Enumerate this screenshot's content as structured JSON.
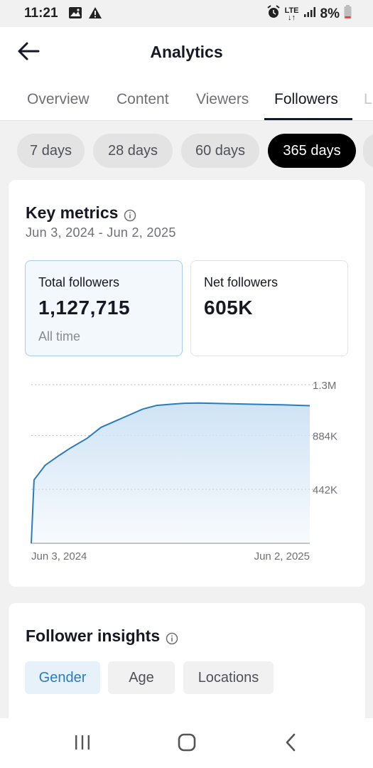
{
  "status_bar": {
    "time": "11:21",
    "network": "LTE",
    "battery": "8%",
    "icons": [
      "image-icon",
      "warning-icon",
      "alarm-icon",
      "lte-icon",
      "signal-icon",
      "battery-icon"
    ]
  },
  "header": {
    "title": "Analytics",
    "back_icon": "back-arrow-icon"
  },
  "tabs": [
    {
      "label": "Overview",
      "active": false
    },
    {
      "label": "Content",
      "active": false
    },
    {
      "label": "Viewers",
      "active": false
    },
    {
      "label": "Followers",
      "active": true
    }
  ],
  "periods": [
    {
      "label": "7 days",
      "active": false
    },
    {
      "label": "28 days",
      "active": false
    },
    {
      "label": "60 days",
      "active": false
    },
    {
      "label": "365 days",
      "active": true
    }
  ],
  "key_metrics": {
    "title": "Key metrics",
    "date_range": "Jun 3, 2024 - Jun 2, 2025",
    "metrics": [
      {
        "label": "Total followers",
        "value": "1,127,715",
        "sub": "All time",
        "selected": true
      },
      {
        "label": "Net followers",
        "value": "605K",
        "sub": "",
        "selected": false
      }
    ]
  },
  "chart_data": {
    "type": "area",
    "title": "",
    "xlabel": "",
    "ylabel": "",
    "x_tick_labels": [
      "Jun 3, 2024",
      "Jun 2, 2025"
    ],
    "y_tick_labels": [
      "442K",
      "884K",
      "1.3M"
    ],
    "ylim": [
      0,
      1300000
    ],
    "grid": true,
    "grid_style": "dotted",
    "line_color": "#2a7cc1",
    "fill_color": "#cfe3f5",
    "series": [
      {
        "x": [
          0,
          1,
          5,
          10,
          14,
          20,
          25,
          30,
          35,
          40,
          45,
          50,
          55,
          60,
          70,
          80,
          90,
          100
        ],
        "y": [
          0,
          520000,
          640000,
          720000,
          780000,
          860000,
          950000,
          1000000,
          1050000,
          1100000,
          1130000,
          1140000,
          1148000,
          1150000,
          1145000,
          1140000,
          1135000,
          1128000
        ]
      }
    ]
  },
  "insights": {
    "title": "Follower insights",
    "tabs": [
      {
        "label": "Gender",
        "active": true
      },
      {
        "label": "Age",
        "active": false
      },
      {
        "label": "Locations",
        "active": false
      }
    ]
  },
  "nav_bar": {
    "icons": [
      "recent-apps-icon",
      "home-icon",
      "back-icon"
    ]
  }
}
